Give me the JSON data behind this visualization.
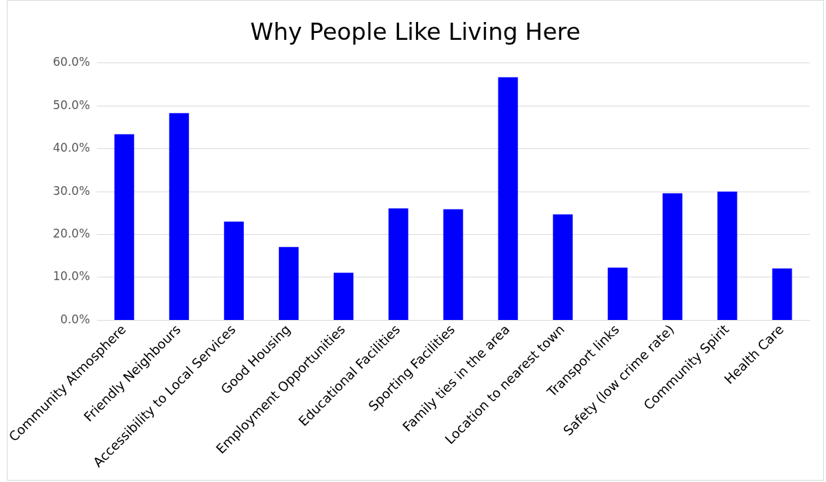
{
  "chart_data": {
    "type": "bar",
    "title": "Why People Like Living Here",
    "categories": [
      "Community Atmosphere",
      "Friendly Neighbours",
      "Accessibility to Local Services",
      "Good Housing",
      "Employment Opportunities",
      "Educational Facilities",
      "Sporting Facilities",
      "Family ties in the area",
      "Location to nearest town",
      "Transport links",
      "Safety (low crime rate)",
      "Community Spirit",
      "Health Care"
    ],
    "values": [
      43.4,
      48.3,
      23.0,
      17.1,
      11.1,
      26.1,
      25.9,
      56.7,
      24.7,
      12.3,
      29.6,
      30.0,
      12.1
    ],
    "color": "#0000ff",
    "ylim": [
      0,
      60
    ],
    "yticks": [
      {
        "value": 0,
        "label": "0.0%"
      },
      {
        "value": 10,
        "label": "10.0%"
      },
      {
        "value": 20,
        "label": "20.0%"
      },
      {
        "value": 30,
        "label": "30.0%"
      },
      {
        "value": 40,
        "label": "40.0%"
      },
      {
        "value": 50,
        "label": "50.0%"
      },
      {
        "value": 60,
        "label": "60.0%"
      }
    ],
    "grid": "y",
    "legend": false
  }
}
